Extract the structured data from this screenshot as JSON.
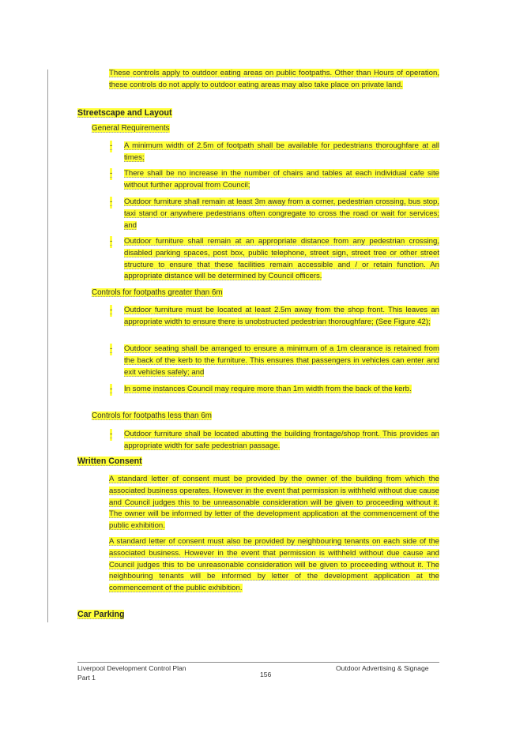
{
  "intro_paragraph": "These controls apply to outdoor eating areas on public footpaths.  Other than Hours of operation, these controls do not apply to outdoor eating areas may also take place on private land.",
  "section_streetscape": {
    "heading": "Streetscape and Layout",
    "general": {
      "subheading": "General Requirements",
      "bullets": [
        "A minimum width of 2.5m of footpath shall be available for pedestrians thoroughfare at all times;",
        "There shall be no increase in the number of chairs and tables at each individual cafe site without further approval from Council;",
        "Outdoor furniture shall remain at least 3m away from a corner, pedestrian crossing, bus stop, taxi stand or anywhere pedestrians often congregate to cross the road or wait for services; and",
        "Outdoor furniture shall remain at an appropriate distance from any pedestrian crossing, disabled parking spaces, post box, public telephone, street sign, street tree or other street structure to ensure that these facilities remain accessible and / or retain function. An appropriate distance will be determined by Council officers."
      ]
    },
    "greater": {
      "subheading": "Controls for footpaths greater than 6m",
      "bullets": [
        "Outdoor furniture must be located at least 2.5m away from the shop front. This leaves an appropriate width to ensure there is unobstructed pedestrian thoroughfare; (See Figure 42);",
        "Outdoor seating shall be arranged to ensure a minimum of a 1m clearance is retained from the back of the kerb to the furniture. This ensures that passengers in vehicles can enter and exit vehicles safely; and",
        " In some instances Council may require more than 1m width from the back of the kerb."
      ]
    },
    "less": {
      "subheading": "Controls for footpaths less than 6m",
      "bullets": [
        "Outdoor furniture shall be located abutting the building frontage/shop front. This provides an appropriate width for safe pedestrian passage."
      ]
    }
  },
  "section_consent": {
    "heading": "Written Consent",
    "paragraphs": [
      "A standard letter of consent must be provided by the owner of the building from which the associated business operates. However in the event that permission is withheld without due cause and Council judges this to be unreasonable consideration will be given to proceeding without it. The owner will be informed by letter of the development application at the commencement of the public exhibition.",
      "A standard letter of consent must also be provided by neighbouring tenants on each side of the associated business. However in the event that permission is withheld without due cause and Council judges this to be unreasonable consideration will be given to proceeding without it. The neighbouring tenants will be informed by letter of the development application at the commencement of the public exhibition."
    ]
  },
  "section_parking": {
    "heading": "Car Parking"
  },
  "bullet_mark": "-",
  "footer": {
    "left_line1": "Liverpool Development Control Plan",
    "left_line2": "Part 1",
    "page_number": "156",
    "right": "Outdoor Advertising & Signage"
  },
  "colors": {
    "highlight": "#ffff3a",
    "text": "#333333"
  }
}
